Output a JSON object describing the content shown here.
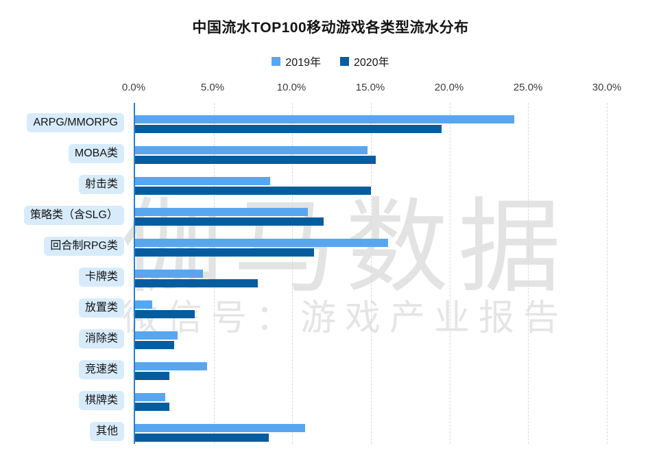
{
  "title": "中国流水TOP100移动游戏各类型流水分布",
  "legend": [
    {
      "label": "2019年",
      "color": "#58a6ef"
    },
    {
      "label": "2020年",
      "color": "#055d9e"
    }
  ],
  "watermark": {
    "line1": "伽马数据",
    "line2": "微信号：游戏产业报告"
  },
  "chart_data": {
    "type": "bar",
    "orientation": "horizontal",
    "title": "中国流水TOP100移动游戏各类型流水分布",
    "categories": [
      "ARPG/MMORPG",
      "MOBA类",
      "射击类",
      "策略类（含SLG）",
      "回合制RPG类",
      "卡牌类",
      "放置类",
      "消除类",
      "竞速类",
      "棋牌类",
      "其他"
    ],
    "series": [
      {
        "name": "2019年",
        "color": "#58a6ef",
        "values": [
          24.1,
          14.8,
          8.6,
          11.0,
          16.1,
          4.3,
          1.1,
          2.7,
          4.6,
          1.9,
          10.8
        ]
      },
      {
        "name": "2020年",
        "color": "#055d9e",
        "values": [
          19.5,
          15.3,
          15.0,
          12.0,
          11.4,
          7.8,
          3.8,
          2.5,
          2.2,
          2.2,
          8.5
        ]
      }
    ],
    "xlabel": "",
    "ylabel": "",
    "x_ticks": [
      "0.0%",
      "5.0%",
      "10.0%",
      "15.0%",
      "20.0%",
      "25.0%",
      "30.0%"
    ],
    "xlim": [
      0,
      30
    ],
    "grid": "dashed-vertical",
    "legend_position": "top",
    "axis_line_color": "#2b7fd0",
    "category_chip_background": "#d7ebfb"
  }
}
